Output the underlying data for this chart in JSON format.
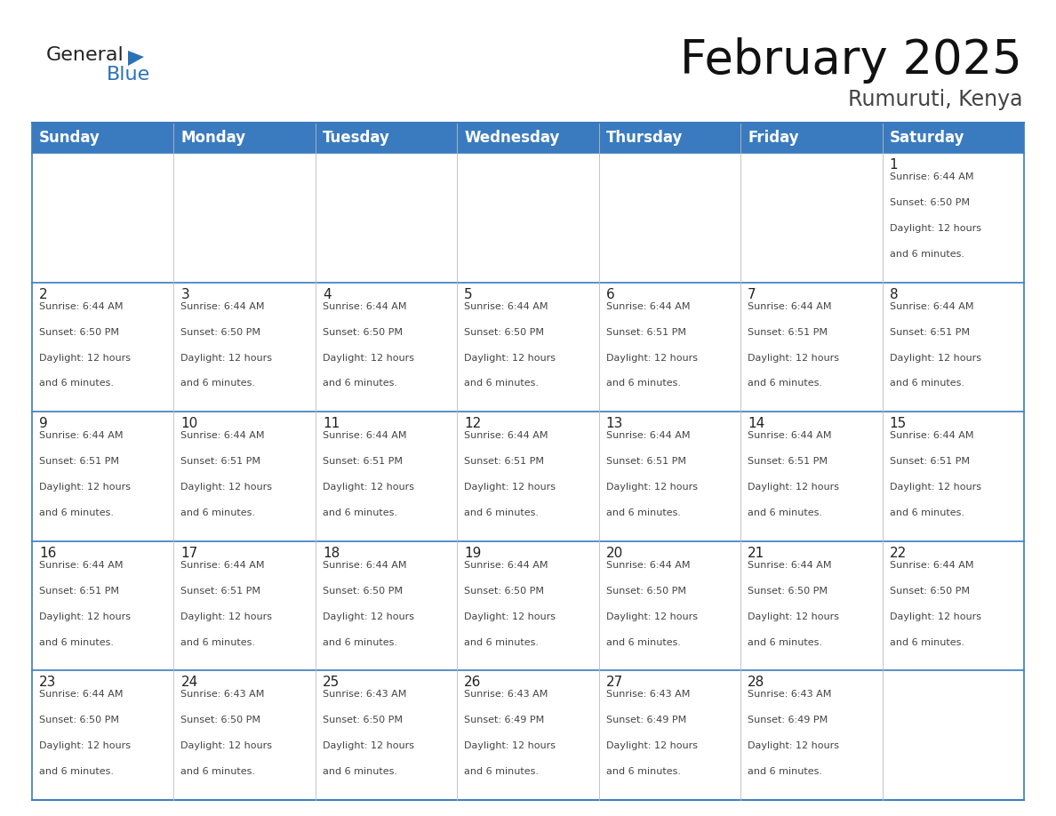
{
  "title": "February 2025",
  "subtitle": "Rumuruti, Kenya",
  "header_bg_color": "#3a7bbf",
  "header_text_color": "#ffffff",
  "cell_bg_color": "#ffffff",
  "border_color": "#3a7bbf",
  "cell_line_color": "#3a7bbf",
  "days_of_week": [
    "Sunday",
    "Monday",
    "Tuesday",
    "Wednesday",
    "Thursday",
    "Friday",
    "Saturday"
  ],
  "title_fontsize": 38,
  "subtitle_fontsize": 17,
  "header_fontsize": 12,
  "day_num_fontsize": 11,
  "cell_text_fontsize": 8,
  "logo_general_color": "#222222",
  "logo_blue_color": "#2a72b8",
  "calendar": [
    [
      {
        "day": null,
        "sunrise": null,
        "sunset": null,
        "daylight_line1": null,
        "daylight_line2": null
      },
      {
        "day": null,
        "sunrise": null,
        "sunset": null,
        "daylight_line1": null,
        "daylight_line2": null
      },
      {
        "day": null,
        "sunrise": null,
        "sunset": null,
        "daylight_line1": null,
        "daylight_line2": null
      },
      {
        "day": null,
        "sunrise": null,
        "sunset": null,
        "daylight_line1": null,
        "daylight_line2": null
      },
      {
        "day": null,
        "sunrise": null,
        "sunset": null,
        "daylight_line1": null,
        "daylight_line2": null
      },
      {
        "day": null,
        "sunrise": null,
        "sunset": null,
        "daylight_line1": null,
        "daylight_line2": null
      },
      {
        "day": "1",
        "sunrise": "Sunrise: 6:44 AM",
        "sunset": "Sunset: 6:50 PM",
        "daylight_line1": "Daylight: 12 hours",
        "daylight_line2": "and 6 minutes."
      }
    ],
    [
      {
        "day": "2",
        "sunrise": "Sunrise: 6:44 AM",
        "sunset": "Sunset: 6:50 PM",
        "daylight_line1": "Daylight: 12 hours",
        "daylight_line2": "and 6 minutes."
      },
      {
        "day": "3",
        "sunrise": "Sunrise: 6:44 AM",
        "sunset": "Sunset: 6:50 PM",
        "daylight_line1": "Daylight: 12 hours",
        "daylight_line2": "and 6 minutes."
      },
      {
        "day": "4",
        "sunrise": "Sunrise: 6:44 AM",
        "sunset": "Sunset: 6:50 PM",
        "daylight_line1": "Daylight: 12 hours",
        "daylight_line2": "and 6 minutes."
      },
      {
        "day": "5",
        "sunrise": "Sunrise: 6:44 AM",
        "sunset": "Sunset: 6:50 PM",
        "daylight_line1": "Daylight: 12 hours",
        "daylight_line2": "and 6 minutes."
      },
      {
        "day": "6",
        "sunrise": "Sunrise: 6:44 AM",
        "sunset": "Sunset: 6:51 PM",
        "daylight_line1": "Daylight: 12 hours",
        "daylight_line2": "and 6 minutes."
      },
      {
        "day": "7",
        "sunrise": "Sunrise: 6:44 AM",
        "sunset": "Sunset: 6:51 PM",
        "daylight_line1": "Daylight: 12 hours",
        "daylight_line2": "and 6 minutes."
      },
      {
        "day": "8",
        "sunrise": "Sunrise: 6:44 AM",
        "sunset": "Sunset: 6:51 PM",
        "daylight_line1": "Daylight: 12 hours",
        "daylight_line2": "and 6 minutes."
      }
    ],
    [
      {
        "day": "9",
        "sunrise": "Sunrise: 6:44 AM",
        "sunset": "Sunset: 6:51 PM",
        "daylight_line1": "Daylight: 12 hours",
        "daylight_line2": "and 6 minutes."
      },
      {
        "day": "10",
        "sunrise": "Sunrise: 6:44 AM",
        "sunset": "Sunset: 6:51 PM",
        "daylight_line1": "Daylight: 12 hours",
        "daylight_line2": "and 6 minutes."
      },
      {
        "day": "11",
        "sunrise": "Sunrise: 6:44 AM",
        "sunset": "Sunset: 6:51 PM",
        "daylight_line1": "Daylight: 12 hours",
        "daylight_line2": "and 6 minutes."
      },
      {
        "day": "12",
        "sunrise": "Sunrise: 6:44 AM",
        "sunset": "Sunset: 6:51 PM",
        "daylight_line1": "Daylight: 12 hours",
        "daylight_line2": "and 6 minutes."
      },
      {
        "day": "13",
        "sunrise": "Sunrise: 6:44 AM",
        "sunset": "Sunset: 6:51 PM",
        "daylight_line1": "Daylight: 12 hours",
        "daylight_line2": "and 6 minutes."
      },
      {
        "day": "14",
        "sunrise": "Sunrise: 6:44 AM",
        "sunset": "Sunset: 6:51 PM",
        "daylight_line1": "Daylight: 12 hours",
        "daylight_line2": "and 6 minutes."
      },
      {
        "day": "15",
        "sunrise": "Sunrise: 6:44 AM",
        "sunset": "Sunset: 6:51 PM",
        "daylight_line1": "Daylight: 12 hours",
        "daylight_line2": "and 6 minutes."
      }
    ],
    [
      {
        "day": "16",
        "sunrise": "Sunrise: 6:44 AM",
        "sunset": "Sunset: 6:51 PM",
        "daylight_line1": "Daylight: 12 hours",
        "daylight_line2": "and 6 minutes."
      },
      {
        "day": "17",
        "sunrise": "Sunrise: 6:44 AM",
        "sunset": "Sunset: 6:51 PM",
        "daylight_line1": "Daylight: 12 hours",
        "daylight_line2": "and 6 minutes."
      },
      {
        "day": "18",
        "sunrise": "Sunrise: 6:44 AM",
        "sunset": "Sunset: 6:50 PM",
        "daylight_line1": "Daylight: 12 hours",
        "daylight_line2": "and 6 minutes."
      },
      {
        "day": "19",
        "sunrise": "Sunrise: 6:44 AM",
        "sunset": "Sunset: 6:50 PM",
        "daylight_line1": "Daylight: 12 hours",
        "daylight_line2": "and 6 minutes."
      },
      {
        "day": "20",
        "sunrise": "Sunrise: 6:44 AM",
        "sunset": "Sunset: 6:50 PM",
        "daylight_line1": "Daylight: 12 hours",
        "daylight_line2": "and 6 minutes."
      },
      {
        "day": "21",
        "sunrise": "Sunrise: 6:44 AM",
        "sunset": "Sunset: 6:50 PM",
        "daylight_line1": "Daylight: 12 hours",
        "daylight_line2": "and 6 minutes."
      },
      {
        "day": "22",
        "sunrise": "Sunrise: 6:44 AM",
        "sunset": "Sunset: 6:50 PM",
        "daylight_line1": "Daylight: 12 hours",
        "daylight_line2": "and 6 minutes."
      }
    ],
    [
      {
        "day": "23",
        "sunrise": "Sunrise: 6:44 AM",
        "sunset": "Sunset: 6:50 PM",
        "daylight_line1": "Daylight: 12 hours",
        "daylight_line2": "and 6 minutes."
      },
      {
        "day": "24",
        "sunrise": "Sunrise: 6:43 AM",
        "sunset": "Sunset: 6:50 PM",
        "daylight_line1": "Daylight: 12 hours",
        "daylight_line2": "and 6 minutes."
      },
      {
        "day": "25",
        "sunrise": "Sunrise: 6:43 AM",
        "sunset": "Sunset: 6:50 PM",
        "daylight_line1": "Daylight: 12 hours",
        "daylight_line2": "and 6 minutes."
      },
      {
        "day": "26",
        "sunrise": "Sunrise: 6:43 AM",
        "sunset": "Sunset: 6:49 PM",
        "daylight_line1": "Daylight: 12 hours",
        "daylight_line2": "and 6 minutes."
      },
      {
        "day": "27",
        "sunrise": "Sunrise: 6:43 AM",
        "sunset": "Sunset: 6:49 PM",
        "daylight_line1": "Daylight: 12 hours",
        "daylight_line2": "and 6 minutes."
      },
      {
        "day": "28",
        "sunrise": "Sunrise: 6:43 AM",
        "sunset": "Sunset: 6:49 PM",
        "daylight_line1": "Daylight: 12 hours",
        "daylight_line2": "and 6 minutes."
      },
      {
        "day": null,
        "sunrise": null,
        "sunset": null,
        "daylight_line1": null,
        "daylight_line2": null
      }
    ]
  ]
}
